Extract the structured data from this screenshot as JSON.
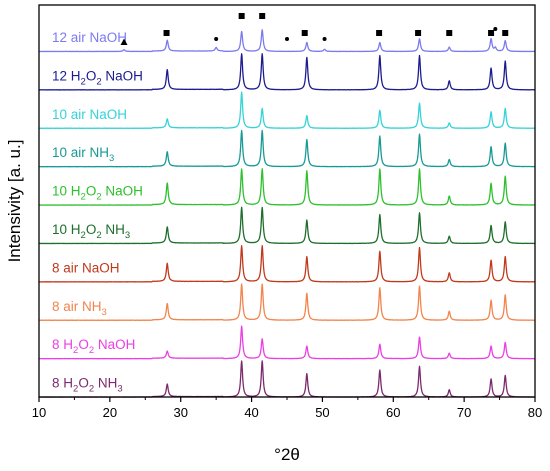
{
  "chart_data": {
    "type": "line",
    "title": "",
    "xlabel": "°2θ",
    "ylabel": "Intensivity [a. u.]",
    "xlim": [
      10,
      80
    ],
    "x_ticks": [
      "10",
      "20",
      "30",
      "40",
      "50",
      "60",
      "70",
      "80"
    ],
    "peaks": [
      28.1,
      38.6,
      41.5,
      47.8,
      58.1,
      63.7,
      67.9,
      73.8,
      75.8
    ],
    "markers": {
      "square": [
        28.0,
        38.6,
        41.5,
        47.5,
        58.0,
        63.5,
        67.9,
        73.8,
        75.8
      ],
      "dot": [
        35.0,
        45.0,
        50.3,
        74.4
      ],
      "triangle": [
        22.0
      ]
    },
    "series": [
      {
        "name": "12 air NaOH",
        "name_parts": [
          [
            "12 air NaOH",
            ""
          ]
        ],
        "color": "#7b7bf0",
        "intensities": [
          0.3,
          0.55,
          0.6,
          0.25,
          0.25,
          0.35,
          0.12,
          0.35,
          0.3
        ],
        "extra_peaks": [
          [
            35.0,
            0.1
          ],
          [
            22.0,
            0.05
          ],
          [
            50.3,
            0.06
          ],
          [
            74.4,
            0.1
          ]
        ]
      },
      {
        "name": "12 H2O2 NaOH",
        "name_parts": [
          [
            "12 H",
            ""
          ],
          [
            "2",
            "sub"
          ],
          [
            "O",
            ""
          ],
          [
            "2",
            "sub"
          ],
          [
            " NaOH",
            ""
          ]
        ],
        "color": "#1c1c90",
        "intensities": [
          0.55,
          1.0,
          1.0,
          0.9,
          0.95,
          0.95,
          0.25,
          0.6,
          0.8
        ]
      },
      {
        "name": "10 air NaOH",
        "name_parts": [
          [
            "10 air NaOH",
            ""
          ]
        ],
        "color": "#35d3d8",
        "intensities": [
          0.25,
          1.0,
          0.55,
          0.35,
          0.5,
          0.7,
          0.15,
          0.45,
          0.55
        ]
      },
      {
        "name": "10 air NH3",
        "name_parts": [
          [
            "10 air NH",
            ""
          ],
          [
            "3",
            "sub"
          ]
        ],
        "color": "#179a96",
        "intensities": [
          0.4,
          1.0,
          1.0,
          0.75,
          0.85,
          0.9,
          0.2,
          0.55,
          0.65
        ]
      },
      {
        "name": "10 H2O2 NaOH",
        "name_parts": [
          [
            "10 H",
            ""
          ],
          [
            "2",
            "sub"
          ],
          [
            "O",
            ""
          ],
          [
            "2",
            "sub"
          ],
          [
            " NaOH",
            ""
          ]
        ],
        "color": "#2ec02e",
        "intensities": [
          0.6,
          1.0,
          1.0,
          0.95,
          1.0,
          1.0,
          0.25,
          0.6,
          0.8
        ]
      },
      {
        "name": "10 H2O2 NH3",
        "name_parts": [
          [
            "10 H",
            ""
          ],
          [
            "2",
            "sub"
          ],
          [
            "O",
            ""
          ],
          [
            "2",
            "sub"
          ],
          [
            " NH",
            ""
          ],
          [
            "3",
            "sub"
          ]
        ],
        "color": "#1e6f2c",
        "intensities": [
          0.45,
          1.0,
          1.0,
          0.65,
          0.8,
          0.85,
          0.2,
          0.5,
          0.6
        ]
      },
      {
        "name": "8 air NaOH",
        "name_parts": [
          [
            "8 air NaOH",
            ""
          ]
        ],
        "color": "#c0391b",
        "intensities": [
          0.5,
          1.0,
          1.0,
          0.7,
          0.85,
          0.95,
          0.25,
          0.6,
          0.7
        ]
      },
      {
        "name": "8 air NH3",
        "name_parts": [
          [
            "8 air NH",
            ""
          ],
          [
            "3",
            "sub"
          ]
        ],
        "color": "#f2844c",
        "intensities": [
          0.45,
          1.0,
          1.0,
          0.75,
          0.9,
          0.95,
          0.25,
          0.55,
          0.7
        ]
      },
      {
        "name": "8 H2O2 NaOH",
        "name_parts": [
          [
            "8 H",
            ""
          ],
          [
            "2",
            "sub"
          ],
          [
            "O",
            ""
          ],
          [
            "2",
            "sub"
          ],
          [
            " NaOH",
            ""
          ]
        ],
        "color": "#ea3fe3",
        "intensities": [
          0.2,
          0.9,
          0.55,
          0.35,
          0.4,
          0.6,
          0.15,
          0.35,
          0.45
        ]
      },
      {
        "name": "8 H2O2 NH3",
        "name_parts": [
          [
            "8 H",
            ""
          ],
          [
            "2",
            "sub"
          ],
          [
            "O",
            ""
          ],
          [
            "2",
            "sub"
          ],
          [
            " NH",
            ""
          ],
          [
            "3",
            "sub"
          ]
        ],
        "color": "#7c2a6e",
        "intensities": [
          0.35,
          1.0,
          1.0,
          0.65,
          0.75,
          0.85,
          0.2,
          0.5,
          0.6
        ]
      }
    ]
  }
}
